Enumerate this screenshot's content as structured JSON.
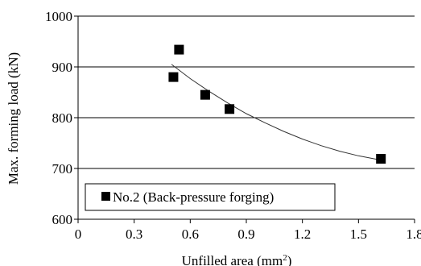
{
  "chart_data": {
    "type": "scatter",
    "xlabel": "Unfilled area  (mm",
    "xlabel_sup": "2",
    "xlabel_tail": ")",
    "ylabel": "Max. forming load  (kN)",
    "xlim": [
      0,
      1.8
    ],
    "ylim": [
      600,
      1000
    ],
    "x_ticks": [
      0,
      0.3,
      0.6,
      0.9,
      1.2,
      1.5,
      1.8
    ],
    "x_tick_labels": [
      "0",
      "0.3",
      "0.6",
      "0.9",
      "1.2",
      "1.5",
      "1.8"
    ],
    "y_ticks": [
      600,
      700,
      800,
      900,
      1000
    ],
    "y_tick_labels": [
      "600",
      "700",
      "800",
      "900",
      "1000"
    ],
    "grid": "horizontal",
    "legend_position": "bottom-left",
    "series": [
      {
        "name": "No.2 (Back-pressure forging)",
        "marker": "square",
        "color": "#000000",
        "points": [
          {
            "x": 0.51,
            "y": 880
          },
          {
            "x": 0.54,
            "y": 934
          },
          {
            "x": 0.68,
            "y": 845
          },
          {
            "x": 0.81,
            "y": 817
          },
          {
            "x": 1.62,
            "y": 719
          }
        ],
        "trendline": {
          "type": "curve",
          "points": [
            {
              "x": 0.5,
              "y": 905
            },
            {
              "x": 0.6,
              "y": 877
            },
            {
              "x": 0.7,
              "y": 852
            },
            {
              "x": 0.8,
              "y": 829
            },
            {
              "x": 0.9,
              "y": 808
            },
            {
              "x": 1.0,
              "y": 790
            },
            {
              "x": 1.1,
              "y": 773
            },
            {
              "x": 1.2,
              "y": 758
            },
            {
              "x": 1.3,
              "y": 745
            },
            {
              "x": 1.4,
              "y": 734
            },
            {
              "x": 1.5,
              "y": 725
            },
            {
              "x": 1.6,
              "y": 718
            }
          ]
        }
      }
    ]
  }
}
